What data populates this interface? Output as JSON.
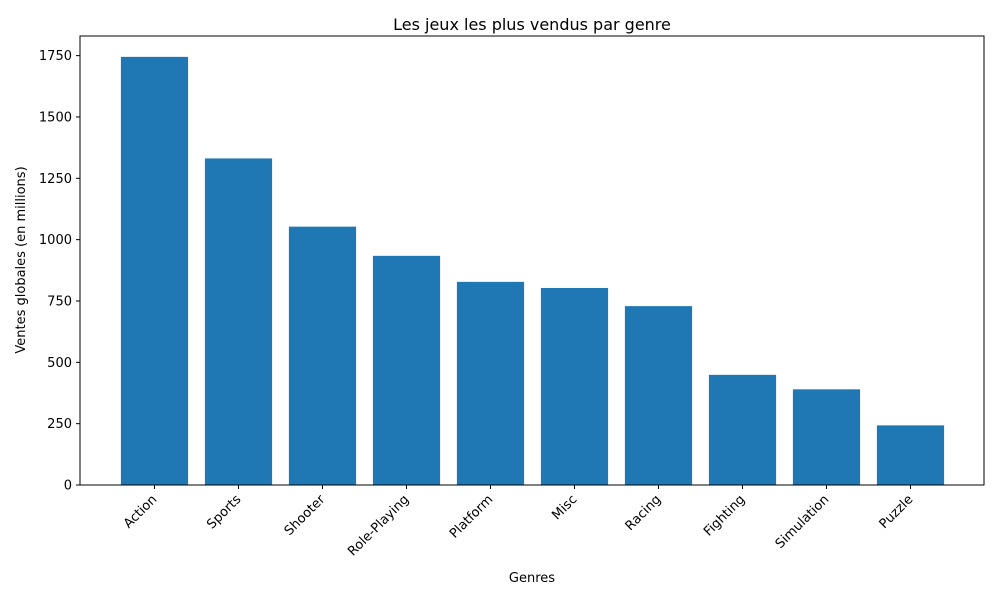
{
  "chart_data": {
    "type": "bar",
    "title": "Les jeux les plus vendus par genre",
    "xlabel": "Genres",
    "ylabel": "Ventes globales (en millions)",
    "categories": [
      "Action",
      "Sports",
      "Shooter",
      "Role-Playing",
      "Platform",
      "Misc",
      "Racing",
      "Fighting",
      "Simulation",
      "Puzzle"
    ],
    "values": [
      1745,
      1331,
      1053,
      934,
      828,
      803,
      729,
      449,
      390,
      243
    ],
    "ylim": [
      0,
      1830
    ],
    "yticks": [
      0,
      250,
      500,
      750,
      1000,
      1250,
      1500,
      1750
    ],
    "bar_color": "#1f77b4",
    "grid": false,
    "legend": "none"
  }
}
